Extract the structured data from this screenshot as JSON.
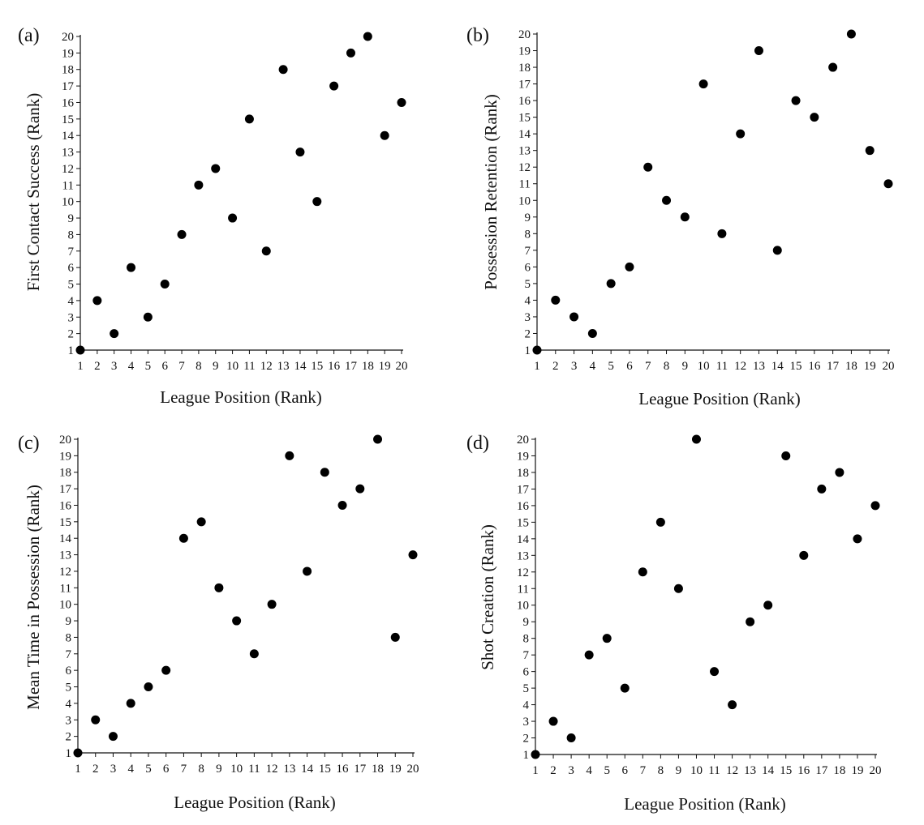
{
  "figure": {
    "panels": [
      "(a)",
      "(b)",
      "(c)",
      "(d)"
    ]
  },
  "chart_data": [
    {
      "type": "scatter",
      "panel_label": "(a)",
      "xlabel": "League Position (Rank)",
      "ylabel": "First Contact Success (Rank)",
      "xlim": [
        1,
        20
      ],
      "ylim": [
        1,
        20
      ],
      "xticks": [
        1,
        2,
        3,
        4,
        5,
        6,
        7,
        8,
        9,
        10,
        11,
        12,
        13,
        14,
        15,
        16,
        17,
        18,
        19,
        20
      ],
      "yticks": [
        1,
        2,
        3,
        4,
        5,
        6,
        7,
        8,
        9,
        10,
        11,
        12,
        13,
        14,
        15,
        16,
        17,
        18,
        19,
        20
      ],
      "grid": false,
      "x": [
        1,
        2,
        3,
        4,
        5,
        6,
        7,
        8,
        9,
        10,
        11,
        12,
        13,
        14,
        15,
        16,
        17,
        18,
        19,
        20
      ],
      "y": [
        1,
        4,
        2,
        6,
        3,
        5,
        8,
        11,
        12,
        9,
        15,
        7,
        18,
        13,
        10,
        17,
        19,
        20,
        14,
        16
      ]
    },
    {
      "type": "scatter",
      "panel_label": "(b)",
      "xlabel": "League Position (Rank)",
      "ylabel": "Possession Retention (Rank)",
      "xlim": [
        1,
        20
      ],
      "ylim": [
        1,
        20
      ],
      "xticks": [
        1,
        2,
        3,
        4,
        5,
        6,
        7,
        8,
        9,
        10,
        11,
        12,
        13,
        14,
        15,
        16,
        17,
        18,
        19,
        20
      ],
      "yticks": [
        1,
        2,
        3,
        4,
        5,
        6,
        7,
        8,
        9,
        10,
        11,
        12,
        13,
        14,
        15,
        16,
        17,
        18,
        19,
        20
      ],
      "grid": false,
      "x": [
        1,
        2,
        3,
        4,
        5,
        6,
        7,
        8,
        9,
        10,
        11,
        12,
        13,
        14,
        15,
        16,
        17,
        18,
        19,
        20
      ],
      "y": [
        1,
        4,
        3,
        2,
        5,
        6,
        12,
        10,
        9,
        17,
        8,
        14,
        19,
        7,
        16,
        15,
        18,
        20,
        13,
        11
      ]
    },
    {
      "type": "scatter",
      "panel_label": "(c)",
      "xlabel": "League Position (Rank)",
      "ylabel": "Mean Time in Possession (Rank)",
      "xlim": [
        1,
        20
      ],
      "ylim": [
        1,
        20
      ],
      "xticks": [
        1,
        2,
        3,
        4,
        5,
        6,
        7,
        8,
        9,
        10,
        11,
        12,
        13,
        14,
        15,
        16,
        17,
        18,
        19,
        20
      ],
      "yticks": [
        1,
        2,
        3,
        4,
        5,
        6,
        7,
        8,
        9,
        10,
        11,
        12,
        13,
        14,
        15,
        16,
        17,
        18,
        19,
        20
      ],
      "grid": false,
      "x": [
        1,
        2,
        3,
        4,
        5,
        6,
        7,
        8,
        9,
        10,
        11,
        12,
        13,
        14,
        15,
        16,
        17,
        18,
        19,
        20
      ],
      "y": [
        1,
        3,
        2,
        4,
        5,
        6,
        14,
        15,
        11,
        9,
        7,
        10,
        19,
        12,
        18,
        16,
        17,
        20,
        8,
        13
      ]
    },
    {
      "type": "scatter",
      "panel_label": "(d)",
      "xlabel": "League Position (Rank)",
      "ylabel": "Shot Creation (Rank)",
      "xlim": [
        1,
        20
      ],
      "ylim": [
        1,
        20
      ],
      "xticks": [
        1,
        2,
        3,
        4,
        5,
        6,
        7,
        8,
        9,
        10,
        11,
        12,
        13,
        14,
        15,
        16,
        17,
        18,
        19,
        20
      ],
      "yticks": [
        1,
        2,
        3,
        4,
        5,
        6,
        7,
        8,
        9,
        10,
        11,
        12,
        13,
        14,
        15,
        16,
        17,
        18,
        19,
        20
      ],
      "grid": false,
      "x": [
        1,
        2,
        3,
        4,
        5,
        6,
        7,
        8,
        9,
        10,
        11,
        12,
        13,
        14,
        15,
        16,
        17,
        18,
        19,
        20
      ],
      "y": [
        1,
        3,
        2,
        7,
        8,
        5,
        12,
        15,
        11,
        20,
        6,
        4,
        9,
        10,
        19,
        13,
        17,
        18,
        14,
        16
      ]
    }
  ]
}
